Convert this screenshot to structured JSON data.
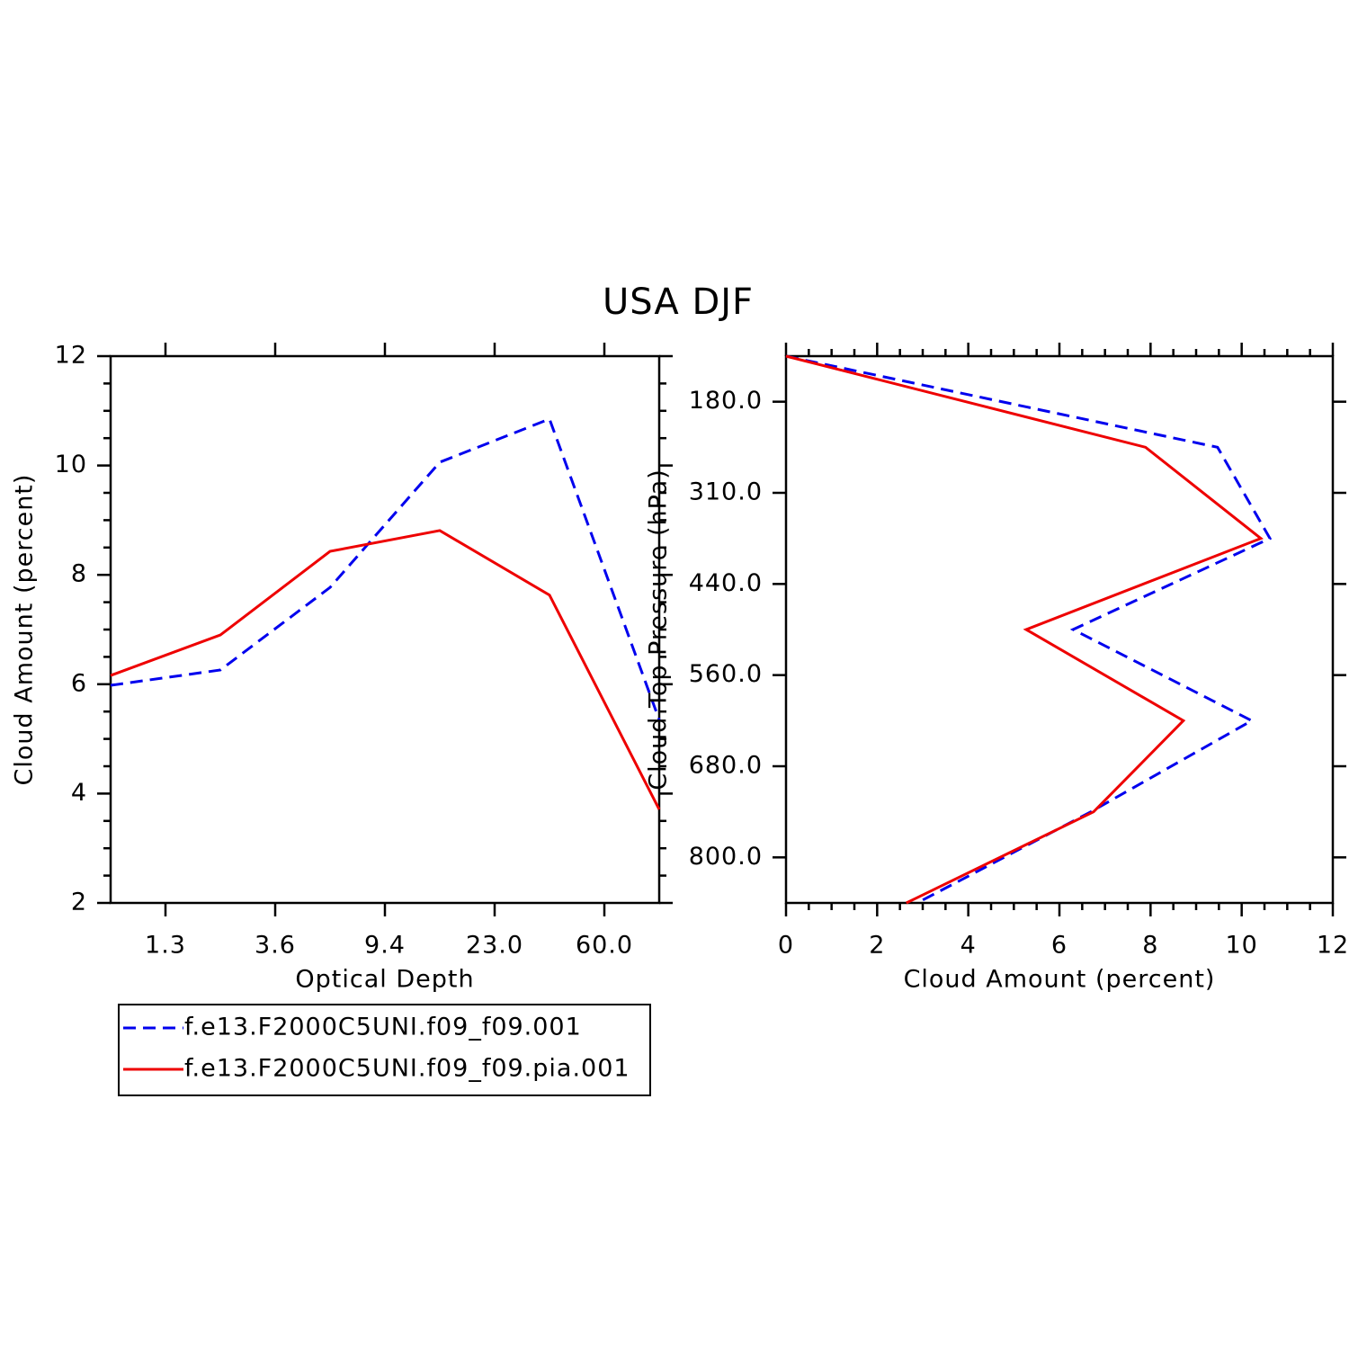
{
  "title": "USA DJF",
  "chart_data": [
    {
      "type": "line",
      "xlabel": "Optical Depth",
      "ylabel": "Cloud Amount (percent)",
      "x": [
        0,
        1,
        2,
        3,
        4,
        5
      ],
      "xlim": [
        0,
        5
      ],
      "xticks": [
        {
          "value": 0.5,
          "label": "1.3"
        },
        {
          "value": 1.5,
          "label": "3.6"
        },
        {
          "value": 2.5,
          "label": "9.4"
        },
        {
          "value": 3.5,
          "label": "23.0"
        },
        {
          "value": 4.5,
          "label": "60.0"
        }
      ],
      "ylim": [
        2,
        12
      ],
      "yticks": [
        2,
        4,
        6,
        8,
        10,
        12
      ],
      "series": [
        {
          "name": "f.e13.F2000C5UNI.f09_f09.001",
          "color": "#0000ee",
          "dashed": true,
          "values": [
            5.98,
            6.26,
            7.77,
            10.06,
            10.85,
            5.35
          ]
        },
        {
          "name": "f.e13.F2000C5UNI.f09_f09.pia.001",
          "color": "#ee0000",
          "dashed": false,
          "values": [
            6.16,
            6.9,
            8.43,
            8.81,
            7.63,
            3.71
          ]
        }
      ]
    },
    {
      "type": "hline",
      "xlabel": "Cloud Amount (percent)",
      "ylabel": "Cloud Top Pressure (hPa)",
      "y": [
        0,
        1,
        2,
        3,
        4,
        5,
        6
      ],
      "ylim": [
        6,
        0
      ],
      "yticks": [
        {
          "value": 0.5,
          "label": "180.0"
        },
        {
          "value": 1.5,
          "label": "310.0"
        },
        {
          "value": 2.5,
          "label": "440.0"
        },
        {
          "value": 3.5,
          "label": "560.0"
        },
        {
          "value": 4.5,
          "label": "680.0"
        },
        {
          "value": 5.5,
          "label": "800.0"
        }
      ],
      "xlim": [
        0,
        12
      ],
      "xticks": [
        0,
        2,
        4,
        6,
        8,
        10,
        12
      ],
      "series": [
        {
          "name": "f.e13.F2000C5UNI.f09_f09.001",
          "color": "#0000ee",
          "dashed": true,
          "values": [
            0,
            9.47,
            10.62,
            6.3,
            10.22,
            6.69,
            2.88
          ]
        },
        {
          "name": "f.e13.F2000C5UNI.f09_f09.pia.001",
          "color": "#ee0000",
          "dashed": false,
          "values": [
            0,
            7.89,
            10.42,
            5.27,
            8.72,
            6.75,
            2.64
          ]
        }
      ]
    }
  ]
}
